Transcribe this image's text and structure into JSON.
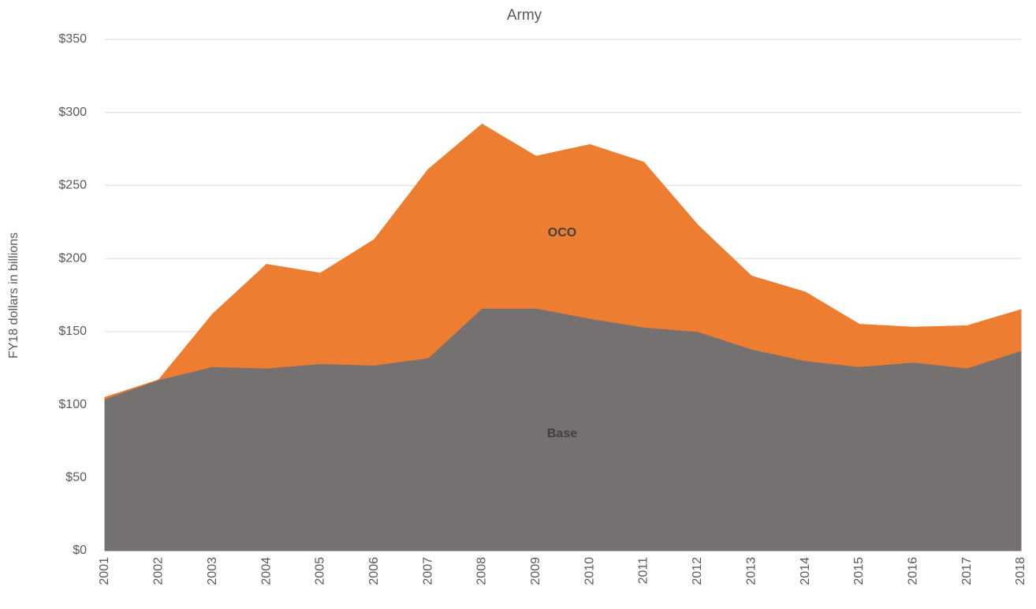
{
  "chart_data": {
    "type": "stacked_area",
    "title": "Army",
    "y_label": "FY18 dollars in billions",
    "categories": [
      "2001",
      "2002",
      "2003",
      "2004",
      "2005",
      "2006",
      "2007",
      "2008",
      "2009",
      "2010",
      "2011",
      "2012",
      "2013",
      "2014",
      "2015",
      "2016",
      "2017",
      "2018"
    ],
    "series": [
      {
        "name": "Base",
        "color": "#767171",
        "values": [
          104,
          117,
          126,
          125,
          128,
          127,
          132,
          166,
          166,
          159,
          153,
          150,
          138,
          130,
          126,
          129,
          125,
          137
        ]
      },
      {
        "name": "OCO",
        "color": "#ed7d31",
        "values": [
          1,
          0,
          36,
          71,
          62,
          86,
          129,
          126,
          104,
          119,
          113,
          73,
          50,
          47,
          29,
          24,
          29,
          28
        ]
      }
    ],
    "ylim": [
      0,
      350
    ],
    "yticks": [
      {
        "value": 0,
        "label": "$0"
      },
      {
        "value": 50,
        "label": "$50"
      },
      {
        "value": 100,
        "label": "$100"
      },
      {
        "value": 150,
        "label": "$150"
      },
      {
        "value": 200,
        "label": "$200"
      },
      {
        "value": 250,
        "label": "$250"
      },
      {
        "value": 300,
        "label": "$300"
      },
      {
        "value": 350,
        "label": "$350"
      }
    ],
    "grid": true
  }
}
